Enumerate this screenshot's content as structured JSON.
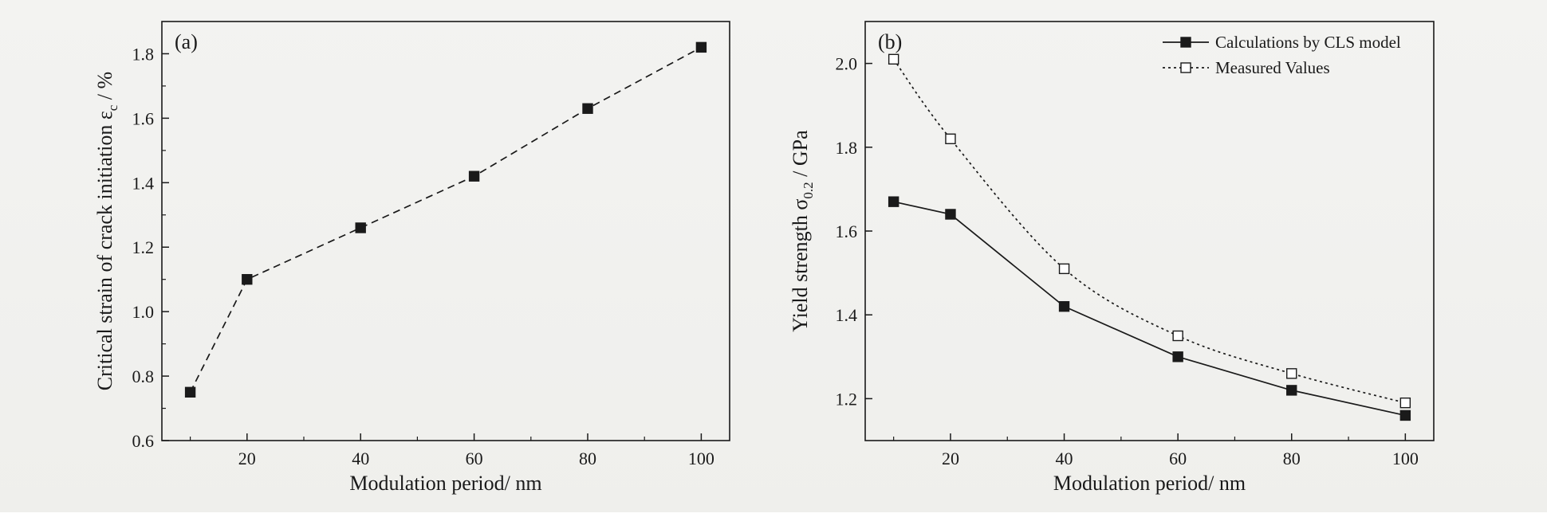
{
  "chart_data": [
    {
      "type": "line",
      "panel_label": "(a)",
      "xlabel": "Modulation period/ nm",
      "ylabel": "Critical strain of crack initiation ε",
      "ylabel_sub": "c",
      "ylabel_unit": " / %",
      "xlim": [
        5,
        105
      ],
      "ylim": [
        0.6,
        1.9
      ],
      "xticks": [
        20,
        40,
        60,
        80,
        100
      ],
      "yticks": [
        0.6,
        0.8,
        1.0,
        1.2,
        1.4,
        1.6,
        1.8
      ],
      "grid": false,
      "series": [
        {
          "x": [
            10,
            20,
            40,
            60,
            80,
            100
          ],
          "values": [
            0.75,
            1.1,
            1.26,
            1.42,
            1.63,
            1.82
          ],
          "line_style": "dashed",
          "marker": "filled-square",
          "color": "#1a1a1a"
        }
      ]
    },
    {
      "type": "line",
      "panel_label": "(b)",
      "xlabel": "Modulation period/ nm",
      "ylabel": "Yield strength σ",
      "ylabel_sub": "0.2",
      "ylabel_unit": " / GPa",
      "xlim": [
        5,
        105
      ],
      "ylim": [
        1.1,
        2.1
      ],
      "xticks": [
        20,
        40,
        60,
        80,
        100
      ],
      "yticks": [
        1.2,
        1.4,
        1.6,
        1.8,
        2.0
      ],
      "grid": false,
      "legend_position": "top-right",
      "series": [
        {
          "name": "Calculations by CLS model",
          "x": [
            10,
            20,
            40,
            60,
            80,
            100
          ],
          "values": [
            1.67,
            1.64,
            1.42,
            1.3,
            1.22,
            1.16
          ],
          "line_style": "solid",
          "marker": "filled-square",
          "color": "#1a1a1a"
        },
        {
          "name": "Measured Values",
          "x": [
            10,
            20,
            40,
            60,
            80,
            100
          ],
          "values": [
            2.01,
            1.82,
            1.51,
            1.35,
            1.26,
            1.19
          ],
          "line_style": "dotted",
          "marker": "open-square",
          "color": "#1a1a1a"
        }
      ]
    }
  ]
}
